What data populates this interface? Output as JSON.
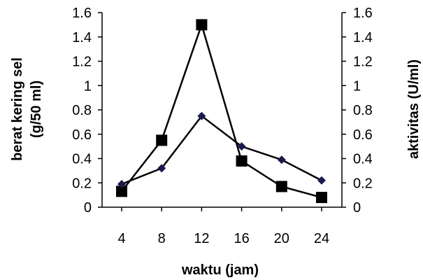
{
  "chart_data": {
    "type": "line",
    "x": [
      4,
      8,
      12,
      16,
      20,
      24
    ],
    "xlabel": "waktu (jam)",
    "ylabel_left": [
      "berat kering sel",
      "(g/50 ml)"
    ],
    "ylabel_right": "aktivitas (U/ml)",
    "ylim": [
      0,
      1.6
    ],
    "y_ticks": [
      "0",
      "0.2",
      "0.4",
      "0.6",
      "0.8",
      "1",
      "1.2",
      "1.4",
      "1.6"
    ],
    "x_ticks": [
      "4",
      "8",
      "12",
      "16",
      "20",
      "24"
    ],
    "grid": false,
    "series": [
      {
        "marker": "square",
        "axis": "left",
        "color": "#000000",
        "values": [
          0.13,
          0.55,
          1.5,
          0.38,
          0.17,
          0.08
        ]
      },
      {
        "marker": "diamond",
        "axis": "right",
        "color": "#000000",
        "marker_color": "#1a1a4e",
        "values": [
          0.19,
          0.32,
          0.75,
          0.5,
          0.39,
          0.22
        ]
      }
    ]
  }
}
